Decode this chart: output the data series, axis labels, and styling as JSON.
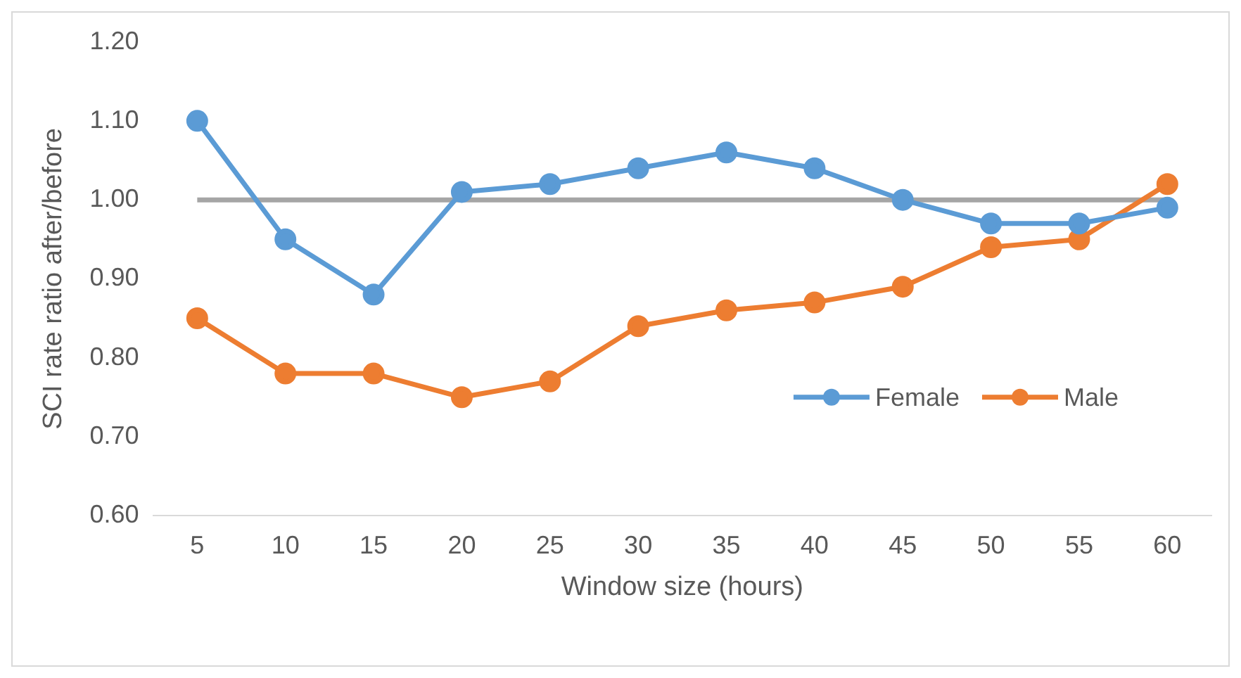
{
  "chart_data": {
    "type": "line",
    "xlabel": "Window size (hours)",
    "ylabel": "SCI rate ratio after/before",
    "categories": [
      "5",
      "10",
      "15",
      "20",
      "25",
      "30",
      "35",
      "40",
      "45",
      "50",
      "55",
      "60"
    ],
    "series": [
      {
        "name": "Female",
        "color": "#5b9bd5",
        "values": [
          1.1,
          0.95,
          0.88,
          1.01,
          1.02,
          1.04,
          1.06,
          1.04,
          1.0,
          0.97,
          0.97,
          0.99
        ]
      },
      {
        "name": "Male",
        "color": "#ed7d31",
        "values": [
          0.85,
          0.78,
          0.78,
          0.75,
          0.77,
          0.84,
          0.86,
          0.87,
          0.89,
          0.94,
          0.95,
          1.02
        ]
      }
    ],
    "ref_lines": [
      {
        "axis": "y",
        "value": 1.0,
        "color": "#a5a5a5"
      }
    ],
    "ylim": [
      0.6,
      1.2
    ],
    "yticks": [
      {
        "value": 0.6,
        "label": "0.60"
      },
      {
        "value": 0.7,
        "label": "0.70"
      },
      {
        "value": 0.8,
        "label": "0.80"
      },
      {
        "value": 0.9,
        "label": "0.90"
      },
      {
        "value": 1.0,
        "label": "1.00"
      },
      {
        "value": 1.1,
        "label": "1.10"
      },
      {
        "value": 1.2,
        "label": "1.20"
      }
    ],
    "grid": false,
    "legend": "right",
    "marker": "circle",
    "line_style": "solid"
  }
}
